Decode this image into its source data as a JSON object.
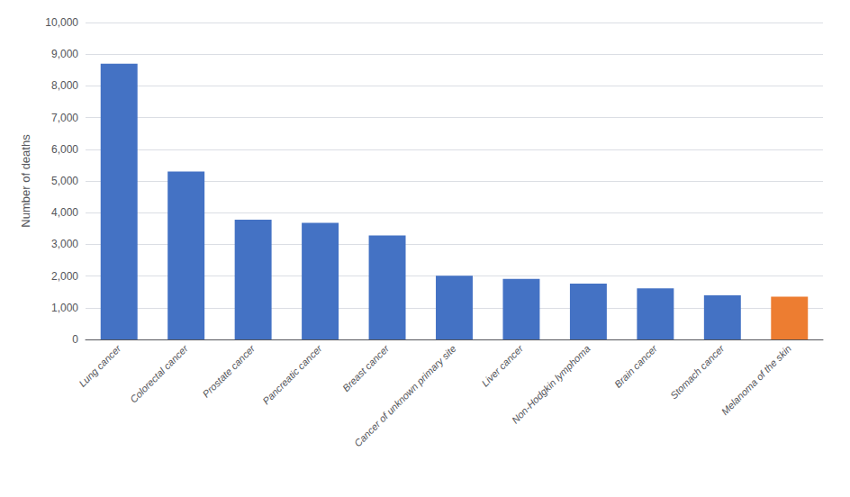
{
  "chart_data": {
    "type": "bar",
    "categories": [
      "Lung cancer",
      "Colorectal cancer",
      "Prostate cancer",
      "Pancreatic cancer",
      "Breast cancer",
      "Cancer of unknown primary site",
      "Liver cancer",
      "Non-Hodgkin lymphoma",
      "Brain cancer",
      "Stomach cancer",
      "Melanoma of the skin"
    ],
    "values": [
      8700,
      5300,
      3780,
      3680,
      3280,
      2010,
      1910,
      1760,
      1610,
      1390,
      1350
    ],
    "colors": [
      "#4472C4",
      "#4472C4",
      "#4472C4",
      "#4472C4",
      "#4472C4",
      "#4472C4",
      "#4472C4",
      "#4472C4",
      "#4472C4",
      "#4472C4",
      "#ED7D31"
    ],
    "ylabel": "Number of deaths",
    "ylim": [
      0,
      10000
    ],
    "yticks": [
      0,
      {
        "value": 1000,
        "label": "1,000"
      },
      {
        "value": 2000,
        "label": "2,000"
      },
      {
        "value": 3000,
        "label": "3,000"
      },
      {
        "value": 4000,
        "label": "4,000"
      },
      {
        "value": 5000,
        "label": "5,000"
      },
      {
        "value": 6000,
        "label": "6,000"
      },
      {
        "value": 7000,
        "label": "7,000"
      },
      {
        "value": 8000,
        "label": "8,000"
      },
      {
        "value": 9000,
        "label": "9,000"
      },
      {
        "value": 10000,
        "label": "10,000"
      }
    ],
    "grid": true
  }
}
